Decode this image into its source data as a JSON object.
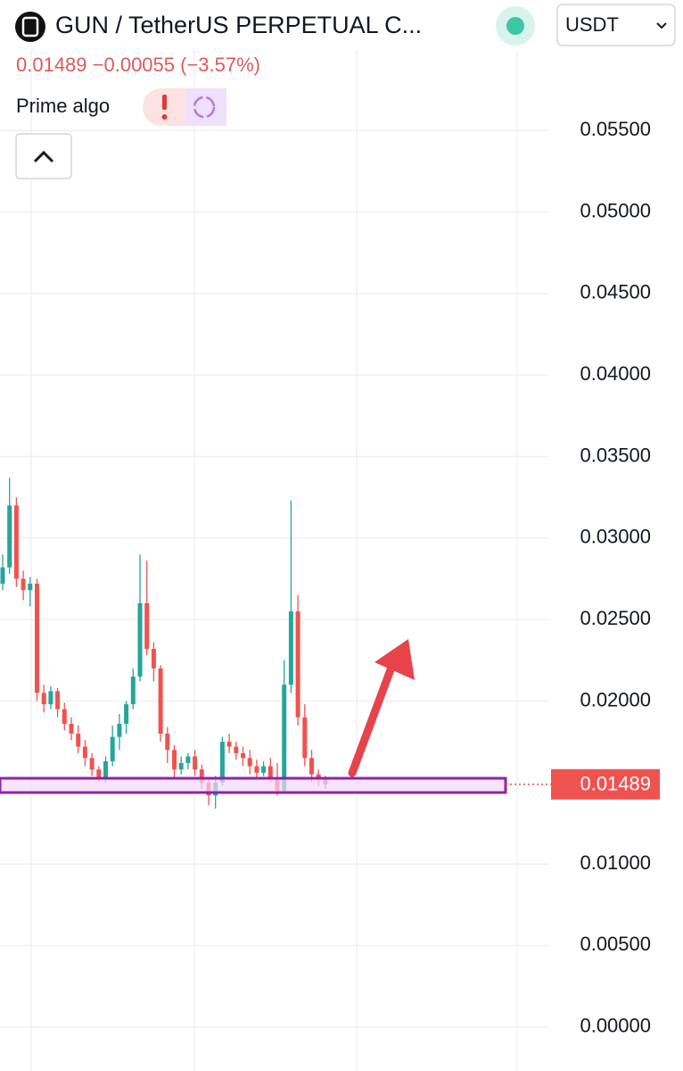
{
  "chart_data": {
    "type": "candlestick",
    "title": "GUN / TetherUS PERPETUAL C...",
    "subtitle": "0.01489 −0.00055 (−3.57%)",
    "indicator": "Prime algo",
    "currency": "USDT",
    "up_color": "#26a69a",
    "down_color": "#ef5350",
    "categories": [
      null,
      null,
      null,
      null,
      null,
      null,
      null,
      null,
      null,
      null,
      null,
      null,
      null,
      null,
      null,
      null,
      null,
      null,
      null,
      null,
      null,
      null,
      null,
      null,
      null,
      null,
      null,
      null,
      null,
      null,
      null,
      null,
      null,
      null,
      null,
      null,
      null,
      null,
      null,
      null,
      null,
      null,
      null,
      null,
      null,
      null,
      null,
      null
    ],
    "open": [
      0.0272,
      0.0282,
      0.032,
      0.0275,
      0.0268,
      0.0272,
      0.0205,
      0.0198,
      0.0206,
      0.0195,
      0.0186,
      0.018,
      0.0172,
      0.0165,
      0.0158,
      0.0153,
      0.0163,
      0.0178,
      0.0186,
      0.0198,
      0.0215,
      0.026,
      0.0232,
      0.022,
      0.018,
      0.017,
      0.0158,
      0.0162,
      0.0166,
      0.0158,
      0.015,
      0.0142,
      0.015,
      0.0175,
      0.0172,
      0.0168,
      0.0165,
      0.016,
      0.0156,
      0.016,
      0.0152,
      0.0145,
      0.021,
      0.0255,
      0.019,
      0.0165,
      0.0155,
      0.0152
    ],
    "high": [
      0.029,
      0.0337,
      0.0325,
      0.028,
      0.0276,
      0.0275,
      0.021,
      0.0209,
      0.0208,
      0.0199,
      0.019,
      0.0185,
      0.0176,
      0.0168,
      0.016,
      0.0166,
      0.0185,
      0.0192,
      0.02,
      0.022,
      0.029,
      0.0286,
      0.0236,
      0.0222,
      0.0184,
      0.0173,
      0.0166,
      0.0168,
      0.017,
      0.0161,
      0.0153,
      0.0154,
      0.0178,
      0.018,
      0.0175,
      0.0172,
      0.017,
      0.0164,
      0.0163,
      0.0165,
      0.0162,
      0.0225,
      0.0323,
      0.0265,
      0.0198,
      0.017,
      0.0158,
      0.0154
    ],
    "low": [
      0.0268,
      0.0278,
      0.027,
      0.0262,
      0.0258,
      0.02,
      0.0193,
      0.0195,
      0.019,
      0.0182,
      0.0176,
      0.0168,
      0.016,
      0.0154,
      0.015,
      0.015,
      0.016,
      0.017,
      0.018,
      0.0195,
      0.0212,
      0.0228,
      0.0212,
      0.0175,
      0.0162,
      0.0152,
      0.0155,
      0.0158,
      0.0154,
      0.0146,
      0.0136,
      0.0134,
      0.0148,
      0.0168,
      0.0164,
      0.016,
      0.0155,
      0.0152,
      0.0154,
      0.015,
      0.0142,
      0.0143,
      0.0205,
      0.0185,
      0.016,
      0.015,
      0.0148,
      0.0146
    ],
    "close": [
      0.0282,
      0.032,
      0.0275,
      0.0268,
      0.0272,
      0.0205,
      0.0198,
      0.0206,
      0.0195,
      0.0186,
      0.018,
      0.0172,
      0.0165,
      0.0158,
      0.0153,
      0.0163,
      0.0178,
      0.0186,
      0.0198,
      0.0215,
      0.026,
      0.0232,
      0.022,
      0.018,
      0.017,
      0.0158,
      0.0162,
      0.0166,
      0.0158,
      0.015,
      0.0142,
      0.015,
      0.0175,
      0.0172,
      0.0168,
      0.0165,
      0.016,
      0.0156,
      0.016,
      0.0152,
      0.0145,
      0.021,
      0.0255,
      0.019,
      0.0165,
      0.0155,
      0.0152,
      0.01489
    ],
    "ylim": [
      -0.0027,
      0.06
    ],
    "yticks": [
      {
        "value": 0,
        "label": "0.00000"
      },
      {
        "value": 0.005,
        "label": "0.00500"
      },
      {
        "value": 0.01,
        "label": "0.01000"
      },
      {
        "value": 0.02,
        "label": "0.02000"
      },
      {
        "value": 0.025,
        "label": "0.02500"
      },
      {
        "value": 0.03,
        "label": "0.03000"
      },
      {
        "value": 0.035,
        "label": "0.03500"
      },
      {
        "value": 0.04,
        "label": "0.04000"
      },
      {
        "value": 0.045,
        "label": "0.04500"
      },
      {
        "value": 0.05,
        "label": "0.05000"
      },
      {
        "value": 0.055,
        "label": "0.05500"
      }
    ],
    "last_price": {
      "value": 0.01489,
      "label": "0.01489"
    },
    "grid": true
  }
}
